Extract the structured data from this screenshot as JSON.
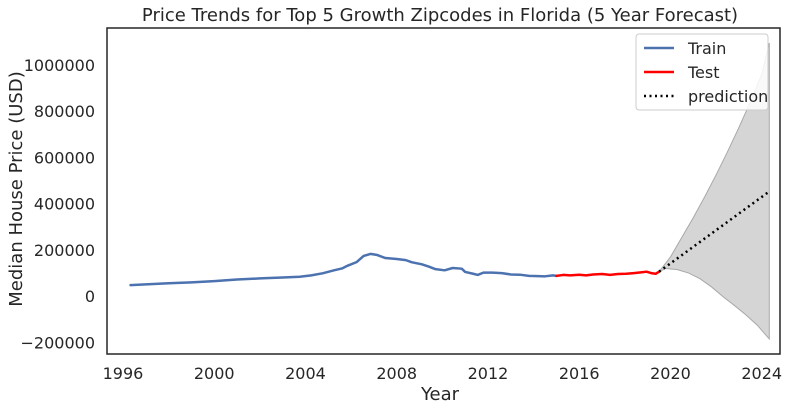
{
  "chart_data": {
    "type": "line",
    "title": "Price Trends for Top 5 Growth Zipcodes in Florida (5 Year Forecast)",
    "xlabel": "Year",
    "ylabel": "Median House Price (USD)",
    "xlim": [
      1995.3,
      2024.8
    ],
    "ylim": [
      -250000,
      1160000
    ],
    "xticks": [
      1996,
      2000,
      2004,
      2008,
      2012,
      2016,
      2020,
      2024
    ],
    "xtick_labels": [
      "1996",
      "2000",
      "2004",
      "2008",
      "2012",
      "2016",
      "2020",
      "2024"
    ],
    "yticks": [
      -200000,
      0,
      200000,
      400000,
      600000,
      800000,
      1000000
    ],
    "ytick_labels": [
      "−200000",
      "0",
      "200000",
      "400000",
      "600000",
      "800000",
      "1000000"
    ],
    "grid": false,
    "legend_position": "top-right",
    "series": [
      {
        "name": "Train",
        "color": "#4c72b0",
        "style": "solid",
        "points": [
          [
            1996.33,
            48000
          ],
          [
            1997,
            51000
          ],
          [
            1998,
            56000
          ],
          [
            1999,
            60000
          ],
          [
            2000,
            65000
          ],
          [
            2001,
            72000
          ],
          [
            2002,
            77000
          ],
          [
            2003,
            81000
          ],
          [
            2003.75,
            84000
          ],
          [
            2004.25,
            90000
          ],
          [
            2004.75,
            99000
          ],
          [
            2005.25,
            112000
          ],
          [
            2005.6,
            120000
          ],
          [
            2005.85,
            132000
          ],
          [
            2006.25,
            148000
          ],
          [
            2006.55,
            174000
          ],
          [
            2006.85,
            183000
          ],
          [
            2007.15,
            178000
          ],
          [
            2007.5,
            165000
          ],
          [
            2008,
            161000
          ],
          [
            2008.4,
            156000
          ],
          [
            2008.65,
            147000
          ],
          [
            2009.1,
            138000
          ],
          [
            2009.4,
            128000
          ],
          [
            2009.7,
            117000
          ],
          [
            2010.1,
            112000
          ],
          [
            2010.45,
            122000
          ],
          [
            2010.85,
            119000
          ],
          [
            2011,
            105000
          ],
          [
            2011.35,
            97000
          ],
          [
            2011.55,
            92000
          ],
          [
            2011.8,
            102000
          ],
          [
            2012.2,
            102000
          ],
          [
            2012.6,
            100000
          ],
          [
            2013,
            94000
          ],
          [
            2013.4,
            93000
          ],
          [
            2013.8,
            88000
          ],
          [
            2014.2,
            87000
          ],
          [
            2014.5,
            86000
          ],
          [
            2014.85,
            90000
          ],
          [
            2015,
            88000
          ]
        ]
      },
      {
        "name": "Test",
        "color": "#ff0000",
        "style": "solid",
        "points": [
          [
            2015,
            88000
          ],
          [
            2015.3,
            92000
          ],
          [
            2015.6,
            90000
          ],
          [
            2016,
            93000
          ],
          [
            2016.3,
            90000
          ],
          [
            2016.6,
            94000
          ],
          [
            2017,
            96000
          ],
          [
            2017.35,
            92000
          ],
          [
            2017.7,
            96000
          ],
          [
            2018.05,
            97000
          ],
          [
            2018.4,
            100000
          ],
          [
            2018.7,
            103000
          ],
          [
            2018.95,
            106000
          ],
          [
            2019.15,
            100000
          ],
          [
            2019.35,
            97000
          ],
          [
            2019.5,
            106000
          ]
        ]
      },
      {
        "name": "prediction",
        "color": "#000000",
        "style": "dotted",
        "points": [
          [
            2019.5,
            106000
          ],
          [
            2024.33,
            453000
          ]
        ]
      }
    ],
    "confidence_band": {
      "color": "#bfbfbf",
      "upper": [
        [
          2019.5,
          106000
        ],
        [
          2020,
          170000
        ],
        [
          2020.5,
          255000
        ],
        [
          2021,
          340000
        ],
        [
          2021.5,
          430000
        ],
        [
          2022,
          525000
        ],
        [
          2022.5,
          625000
        ],
        [
          2023,
          730000
        ],
        [
          2023.5,
          840000
        ],
        [
          2024,
          960000
        ],
        [
          2024.33,
          1095000
        ]
      ],
      "lower": [
        [
          2019.5,
          106000
        ],
        [
          2019.8,
          120000
        ],
        [
          2020.3,
          115000
        ],
        [
          2020.8,
          100000
        ],
        [
          2021.3,
          75000
        ],
        [
          2021.8,
          40000
        ],
        [
          2022.3,
          -2000
        ],
        [
          2022.8,
          -40000
        ],
        [
          2023.3,
          -80000
        ],
        [
          2023.8,
          -125000
        ],
        [
          2024.33,
          -185000
        ]
      ]
    }
  }
}
